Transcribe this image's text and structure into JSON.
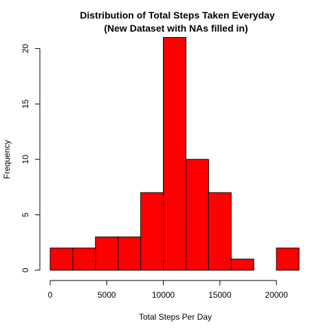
{
  "chart_data": {
    "type": "bar",
    "title": "Distribution of Total Steps Taken Everyday",
    "subtitle": "(New Dataset with NAs filled in)",
    "xlabel": "Total Steps Per Day",
    "ylabel": "Frequency",
    "bin_edges": [
      0,
      2000,
      4000,
      6000,
      8000,
      10000,
      12000,
      14000,
      16000,
      18000,
      20000,
      22000
    ],
    "values": [
      2,
      2,
      3,
      3,
      7,
      21,
      10,
      7,
      1,
      0,
      2
    ],
    "xlim": [
      0,
      22000
    ],
    "ylim": [
      0,
      21
    ],
    "x_ticks": [
      0,
      5000,
      10000,
      15000,
      20000
    ],
    "x_tick_labels": [
      "0",
      "5000",
      "10000",
      "15000",
      "20000"
    ],
    "y_ticks": [
      0,
      5,
      10,
      15,
      20
    ],
    "y_tick_labels": [
      "0",
      "5",
      "10",
      "15",
      "20"
    ],
    "bar_color": "#ff0000",
    "grid": false
  }
}
